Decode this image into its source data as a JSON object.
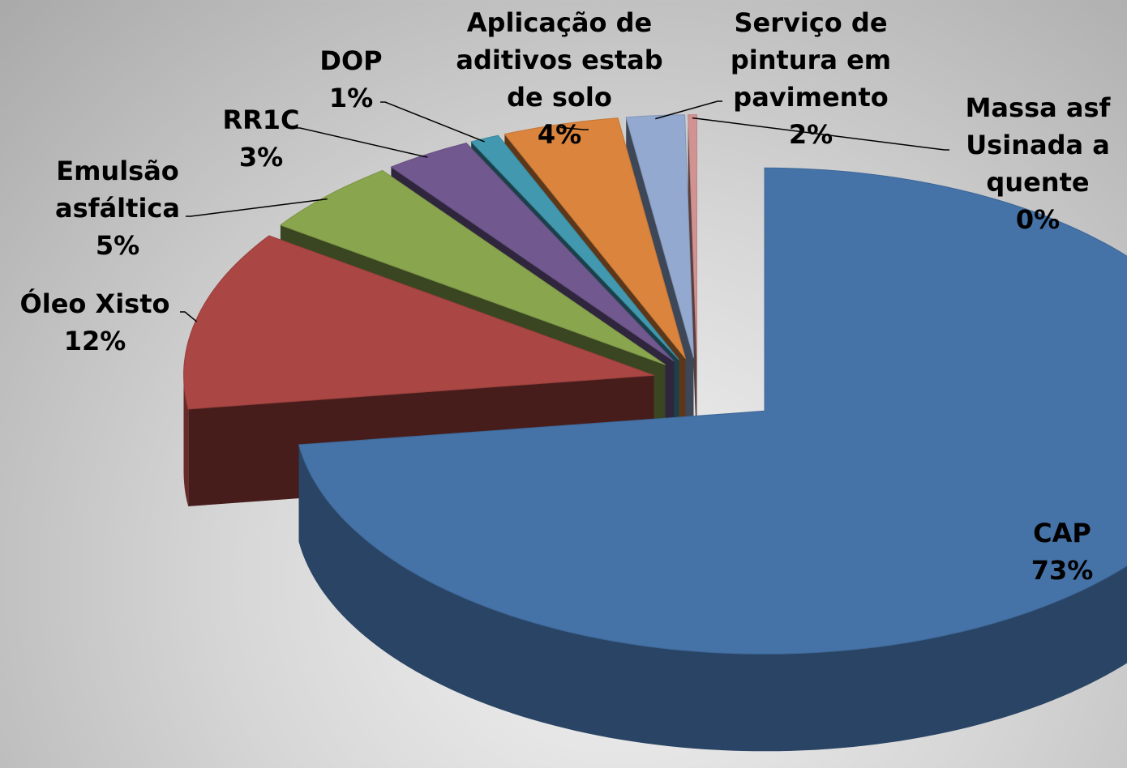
{
  "chart_data": {
    "type": "pie3d",
    "categories": [
      "CAP",
      "Óleo Xisto",
      "Emulsão asfáltica",
      "RR1C",
      "DOP",
      "Aplicação de aditivos estab de solo",
      "Serviço de pintura em pavimento",
      "Massa asf Usinada a quente"
    ],
    "values": [
      73,
      12,
      5,
      3,
      1,
      4,
      2,
      0.3
    ],
    "value_labels": [
      "73%",
      "12%",
      "5%",
      "3%",
      "1%",
      "4%",
      "2%",
      "0%"
    ],
    "colors": [
      "#4572a7",
      "#aa4643",
      "#89a54e",
      "#71588f",
      "#4198af",
      "#db843d",
      "#93a9cf",
      "#d19392"
    ]
  }
}
